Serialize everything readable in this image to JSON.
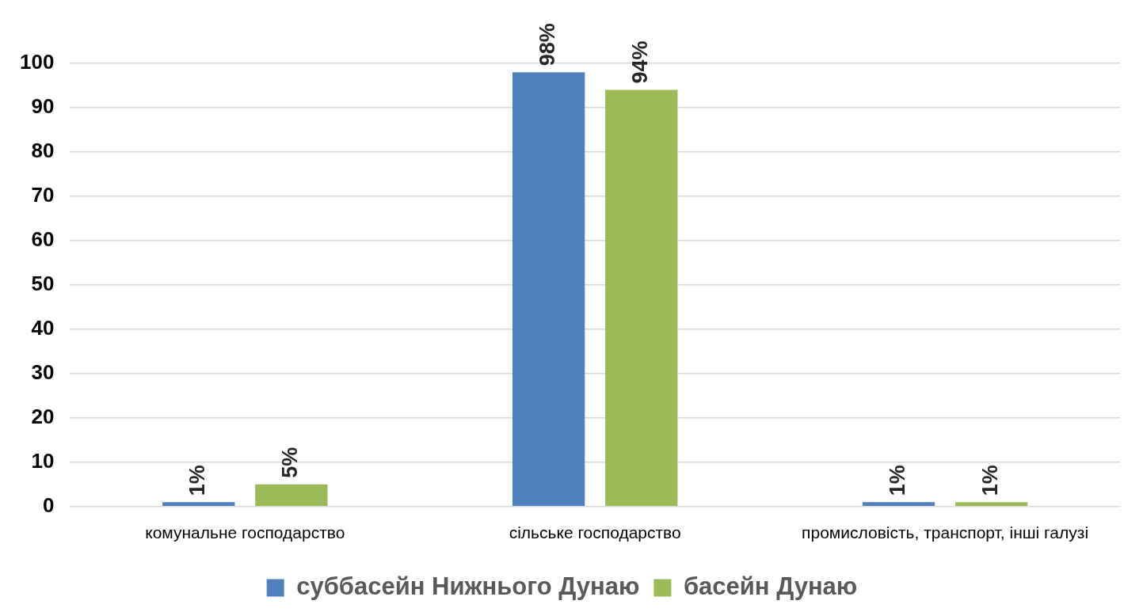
{
  "chart_data": {
    "type": "bar",
    "categories": [
      "комунальне господарство",
      "сільське господарство",
      "промисловість, транспорт, інші галузі"
    ],
    "series": [
      {
        "name": "суббасейн Нижнього Дунаю",
        "color": "#4f81bd",
        "values": [
          1,
          98,
          1
        ],
        "value_labels": [
          "1%",
          "98%",
          "1%"
        ]
      },
      {
        "name": "басейн Дунаю",
        "color": "#9bbb59",
        "values": [
          5,
          94,
          1
        ],
        "value_labels": [
          "5%",
          "94%",
          "1%"
        ]
      }
    ],
    "ylim": [
      0,
      100
    ],
    "yticks": [
      0,
      10,
      20,
      30,
      40,
      50,
      60,
      70,
      80,
      90,
      100
    ],
    "grid": "y",
    "legend": "bottom"
  }
}
